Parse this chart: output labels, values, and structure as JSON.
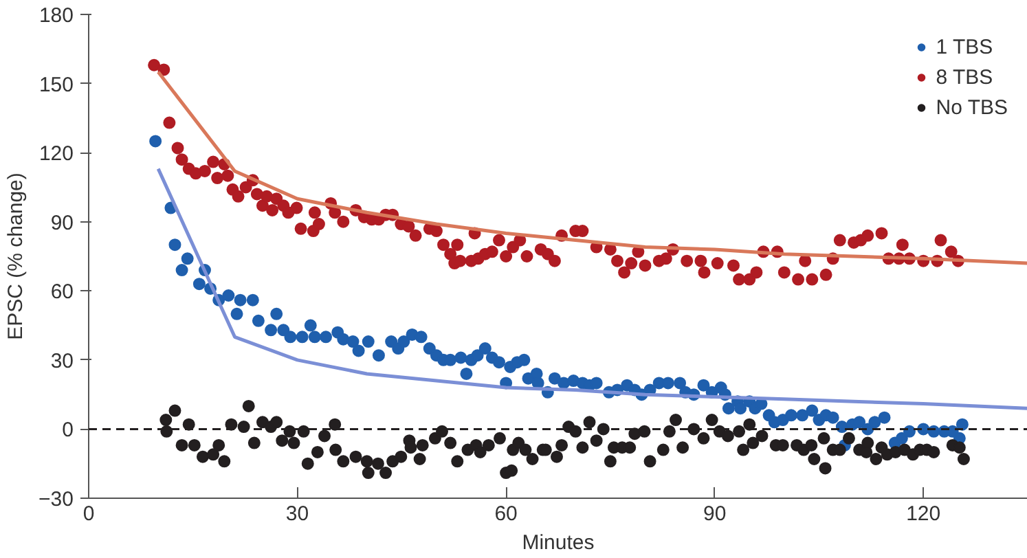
{
  "chart_data": {
    "type": "scatter",
    "xlabel": "Minutes",
    "ylabel": "EPSC (% change)",
    "xlim": [
      0,
      135
    ],
    "ylim": [
      -30,
      180
    ],
    "xticks": [
      0,
      30,
      60,
      90,
      120
    ],
    "yticks": [
      {
        "value": -30,
        "label": "−30"
      },
      0,
      30,
      60,
      90,
      120,
      150,
      180
    ],
    "grid": false,
    "legend": "top right",
    "ref_lines": [
      {
        "axis": "y",
        "value": 0,
        "color": "#231f20",
        "line_style": "dashed"
      }
    ],
    "series": [
      {
        "name": "1 TBS",
        "color": "#1f5fad",
        "marker": "circle",
        "x": [
          9.6,
          11.8,
          12.4,
          13.4,
          14.2,
          15.9,
          16.7,
          17.5,
          18.7,
          20.1,
          21.3,
          21.8,
          23.6,
          24.4,
          26.2,
          27,
          28,
          29,
          30.7,
          31.9,
          32.5,
          34.1,
          35.8,
          36.6,
          38,
          38.8,
          40.2,
          41.7,
          43.5,
          44.5,
          45.3,
          46.5,
          47.8,
          49,
          50,
          51,
          52,
          53.5,
          54.3,
          55,
          55.9,
          57,
          58,
          59,
          60,
          60.6,
          61.6,
          62.6,
          63.2,
          64.4,
          64.6,
          66,
          67,
          68.3,
          69.7,
          71,
          72,
          73,
          74.8,
          76,
          77.4,
          78.5,
          79.5,
          80.7,
          82,
          83.3,
          85,
          85.8,
          87,
          88.4,
          89.6,
          90.9,
          91.5,
          92,
          93.3,
          93.7,
          95,
          95.8,
          96.7,
          97.8,
          98.6,
          99.8,
          101,
          102.6,
          104,
          105,
          106,
          107,
          108.3,
          108.7,
          109.8,
          110.8,
          112,
          113,
          114.4,
          115.9,
          116.9,
          118,
          120,
          121.5,
          123,
          124.2,
          125.2,
          125.6
        ],
        "values": [
          125,
          96,
          80,
          69,
          74,
          63,
          69,
          61,
          56,
          58,
          50,
          56,
          56,
          47,
          43,
          50,
          43,
          40,
          40,
          45,
          40,
          40,
          42,
          39,
          38,
          34,
          38,
          32,
          38,
          35,
          38,
          41,
          40,
          35,
          32,
          30,
          30,
          31,
          24,
          30,
          32,
          35,
          31,
          29,
          20,
          27,
          29,
          30,
          22,
          24,
          20,
          16,
          22,
          20,
          21,
          20,
          19,
          20,
          16,
          17,
          19,
          17,
          15,
          17,
          20,
          20,
          20,
          16,
          15,
          19,
          16,
          18,
          15,
          9,
          12,
          9,
          12,
          9,
          11,
          6,
          3,
          4,
          6,
          6,
          8,
          4,
          6,
          5,
          1,
          -7,
          2,
          3,
          0,
          3,
          5,
          -6,
          -4,
          -1,
          0,
          -1,
          -1,
          -1,
          -4,
          2
        ]
      },
      {
        "name": "8 TBS",
        "color": "#b01c23",
        "marker": "circle",
        "x": [
          9.4,
          10.8,
          11.6,
          12.8,
          13.4,
          14.4,
          15.4,
          16.7,
          17.9,
          18.5,
          19.5,
          20,
          20.7,
          21.5,
          22.6,
          23.6,
          24.2,
          25,
          25.6,
          26.4,
          27,
          28,
          28.7,
          29.9,
          30.5,
          32.3,
          32.5,
          33.1,
          34.8,
          35.4,
          36.6,
          38.4,
          39.6,
          40.7,
          41.7,
          42.7,
          43.7,
          44.9,
          46,
          47,
          49,
          50,
          51,
          52,
          52.6,
          53,
          53.4,
          55,
          55.5,
          56,
          57,
          58,
          59,
          60,
          61,
          62,
          63,
          65,
          66,
          67,
          68,
          70,
          71,
          73,
          75,
          76,
          77,
          78,
          79,
          80,
          82,
          83,
          84,
          86,
          88,
          88.5,
          90.4,
          92.7,
          93.5,
          95,
          96,
          97,
          99,
          100,
          102,
          103,
          104,
          106,
          107,
          108,
          110,
          111,
          112,
          114,
          115,
          116.5,
          117,
          118,
          120,
          122,
          122.5,
          124,
          125
        ],
        "values": [
          158,
          156,
          133,
          122,
          117,
          113,
          111,
          112,
          116,
          109,
          115,
          110,
          104,
          101,
          105,
          108,
          102,
          97,
          101,
          95,
          100,
          97,
          94,
          96,
          87,
          86,
          94,
          89,
          98,
          94,
          90,
          95,
          92,
          91,
          91,
          93,
          93,
          89,
          88,
          84,
          87,
          86,
          80,
          76,
          72,
          80,
          73,
          73,
          85,
          74,
          76,
          77,
          82,
          75,
          79,
          82,
          75,
          78,
          76,
          73,
          84,
          86,
          86,
          79,
          78,
          73,
          68,
          72,
          77,
          71,
          73,
          74,
          78,
          73,
          73,
          68,
          72,
          71,
          65,
          65,
          68,
          77,
          77,
          68,
          65,
          73,
          65,
          67,
          74,
          82,
          81,
          82,
          84,
          85,
          74,
          74,
          80,
          74,
          73,
          73,
          82,
          77,
          73
        ]
      },
      {
        "name": "No TBS",
        "color": "#231f20",
        "marker": "circle",
        "x": [
          11.1,
          11.2,
          12.4,
          13.4,
          14.4,
          15.2,
          16.4,
          17.9,
          18.7,
          19.5,
          20.5,
          22.3,
          23,
          23.8,
          25,
          26.2,
          27,
          27.8,
          28.9,
          29.5,
          30.9,
          31.5,
          32.9,
          33.9,
          35.4,
          35.5,
          36.6,
          38.4,
          40,
          40.2,
          41.6,
          42.7,
          43.7,
          44.9,
          46.1,
          46.3,
          47.6,
          48,
          49.8,
          50.8,
          52,
          53,
          54.5,
          55.7,
          56.3,
          57.5,
          59.1,
          60,
          60.8,
          61,
          61.8,
          62.8,
          63.8,
          65.3,
          65.7,
          67.3,
          68,
          69,
          70,
          71,
          72,
          73,
          74,
          75,
          75.5,
          76.7,
          77.8,
          78.5,
          79.9,
          80.7,
          82.6,
          83.5,
          84.4,
          85.4,
          87,
          88.4,
          89.6,
          90.7,
          91.9,
          93.5,
          94.1,
          95,
          95.5,
          96.8,
          98.8,
          99.8,
          101.8,
          102.8,
          103.9,
          104.3,
          105.7,
          105.9,
          107,
          108,
          109.3,
          110.8,
          111.8,
          112,
          113.2,
          114,
          114.8,
          116,
          117.3,
          118.5,
          119.5,
          120.5,
          121.5,
          124.2,
          125.2,
          125.8
        ],
        "values": [
          4,
          -1,
          8,
          -7,
          2,
          -7,
          -12,
          -11,
          -7,
          -14,
          2,
          1,
          10,
          -6,
          3,
          1,
          3,
          -5,
          -1,
          -6,
          -1,
          -15,
          -10,
          -3,
          2,
          -9,
          -14,
          -12,
          -14,
          -19,
          -15,
          -19,
          -14,
          -12,
          -5,
          -8,
          -13,
          -7,
          -4,
          -1,
          -6,
          -14,
          -9,
          -7,
          -10,
          -7,
          -4,
          -19,
          -18,
          -9,
          -6,
          -9,
          -13,
          -9,
          -9,
          -12,
          -7,
          1,
          -1,
          -8,
          3,
          -5,
          0,
          -14,
          -8,
          -8,
          -8,
          -2,
          -1,
          -14,
          -9,
          -1,
          4,
          -8,
          0,
          -4,
          4,
          -1,
          -3,
          -1,
          -9,
          2,
          -6,
          -3,
          -7,
          -7,
          -7,
          -9,
          -7,
          -13,
          -4,
          -17,
          -9,
          -9,
          -4,
          -9,
          -10,
          -6,
          -13,
          -8,
          -11,
          -10,
          -9,
          -11,
          -9,
          -9,
          -10,
          -7,
          -8,
          -13
        ]
      },
      {
        "color": "#7b8fd6",
        "type": "line",
        "x": [
          10,
          21,
          30,
          40,
          50,
          60,
          70,
          80,
          90,
          100,
          110,
          120,
          135
        ],
        "values": [
          113,
          40,
          30,
          24,
          21,
          18,
          17,
          15,
          14,
          13,
          12,
          11,
          9
        ]
      },
      {
        "color": "#d9785a",
        "type": "line",
        "x": [
          10,
          21,
          30,
          40,
          50,
          60,
          70,
          80,
          90,
          100,
          110,
          120,
          135
        ],
        "values": [
          155,
          112,
          100,
          94,
          89,
          85,
          82,
          79,
          78,
          76,
          75,
          74,
          72
        ]
      }
    ]
  }
}
